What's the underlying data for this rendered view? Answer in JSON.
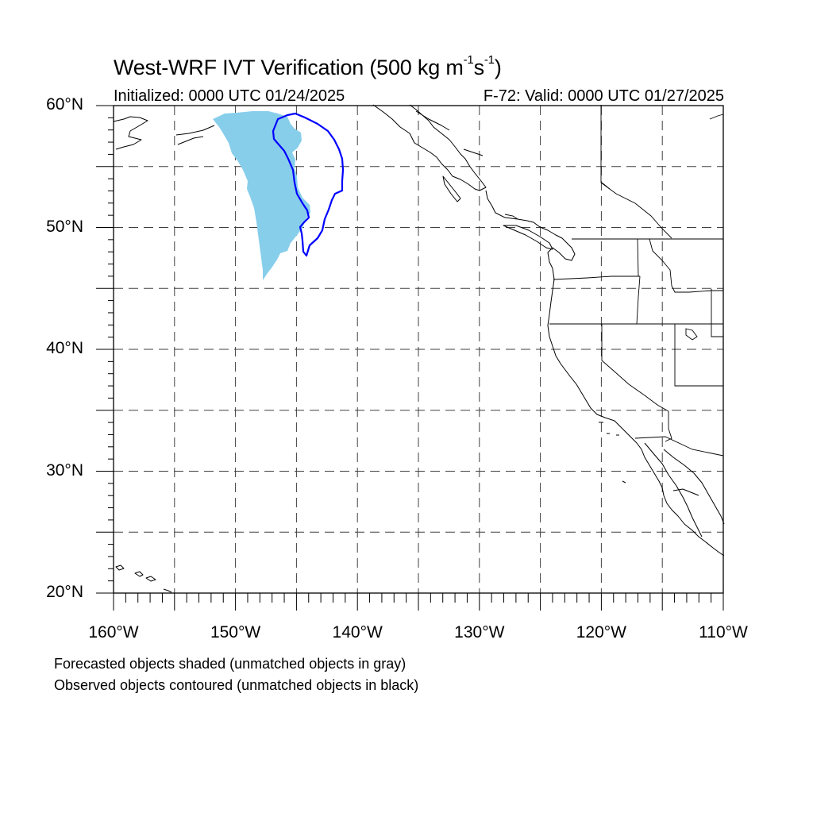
{
  "title": {
    "main": "West-WRF IVT Verification (500 kg m",
    "exp1": "-1",
    "mid": "s",
    "exp2": "-1",
    "end": ")"
  },
  "initialized": "Initialized: 0000 UTC 01/24/2025",
  "valid": "F-72: Valid: 0000 UTC 01/27/2025",
  "lat_labels": [
    "60°N",
    "50°N",
    "40°N",
    "30°N",
    "20°N"
  ],
  "lon_labels": [
    "160°W",
    "150°W",
    "140°W",
    "130°W",
    "120°W",
    "110°W"
  ],
  "notes": [
    "Forecasted objects shaded (unmatched objects in gray)",
    "Observed objects contoured (unmatched objects in black)"
  ],
  "colors": {
    "forecast_fill": "#87CEEB",
    "observed_contour": "#0000FF",
    "grid": "#000000",
    "coastline": "#000000"
  },
  "map": {
    "lon_range": [
      -160,
      -110
    ],
    "lat_range": [
      20,
      60
    ],
    "grid_spacing_deg": 5,
    "grid_style": "dashed"
  }
}
